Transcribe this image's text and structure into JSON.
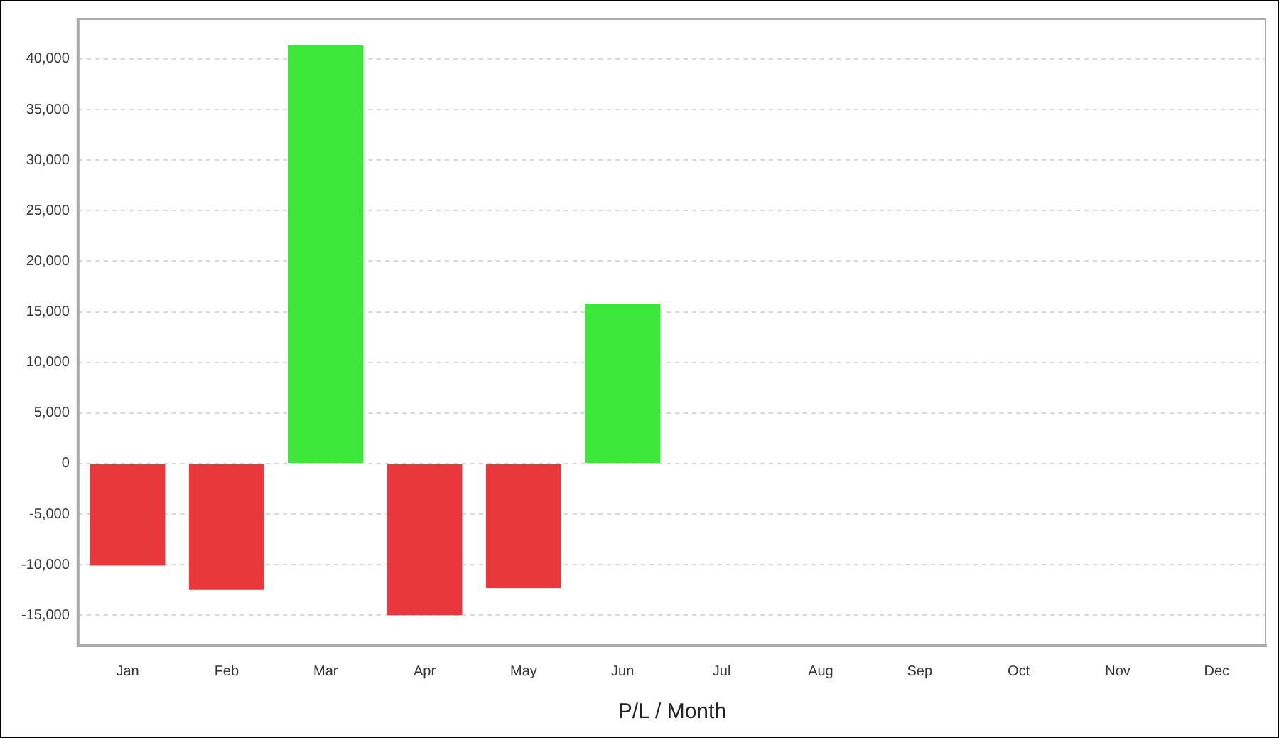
{
  "chart_data": {
    "type": "bar",
    "xlabel": "P/L / Month",
    "categories": [
      "Jan",
      "Feb",
      "Mar",
      "Apr",
      "May",
      "Jun",
      "Jul",
      "Aug",
      "Sep",
      "Oct",
      "Nov",
      "Dec"
    ],
    "values": [
      -10100,
      -12500,
      41400,
      -15000,
      -12300,
      15800,
      null,
      null,
      null,
      null,
      null,
      null
    ],
    "colors": [
      "#e8383b",
      "#e8383b",
      "#3de83a",
      "#e8383b",
      "#e8383b",
      "#3de83a",
      "#e8383b",
      "#e8383b",
      "#e8383b",
      "#e8383b",
      "#e8383b",
      "#e8383b"
    ],
    "ylim": [
      -18000,
      44000
    ],
    "yticks": [
      {
        "value": -15000,
        "label": "-15,000"
      },
      {
        "value": -10000,
        "label": "-10,000"
      },
      {
        "value": -5000,
        "label": "-5,000"
      },
      0,
      {
        "value": 5000,
        "label": "5,000"
      },
      {
        "value": 10000,
        "label": "10,000"
      },
      {
        "value": 15000,
        "label": "15,000"
      },
      {
        "value": 20000,
        "label": "20,000"
      },
      {
        "value": 25000,
        "label": "25,000"
      },
      {
        "value": 30000,
        "label": "30,000"
      },
      {
        "value": 35000,
        "label": "35,000"
      },
      {
        "value": 40000,
        "label": "40,000"
      }
    ],
    "grid": "y",
    "legend": false
  }
}
